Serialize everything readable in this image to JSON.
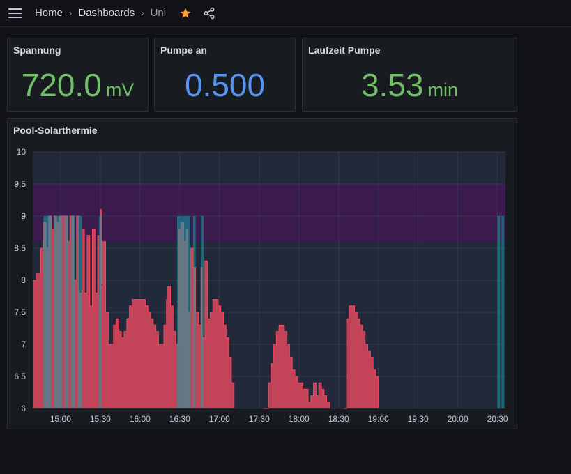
{
  "breadcrumb": {
    "home": "Home",
    "dashboards": "Dashboards",
    "current": "Uni"
  },
  "icons": {
    "menu": "hamburger-menu-icon",
    "star": "star-icon",
    "share": "share-icon"
  },
  "colors": {
    "green": "#73bf69",
    "blue": "#5794f2",
    "star": "#ff9830",
    "series_red": "#f2495c",
    "series_teal": "#16a3a8",
    "threshold_purple": "#3b1a4e"
  },
  "stats": [
    {
      "title": "Spannung",
      "value": "720.0",
      "unit": "mV"
    },
    {
      "title": "Pumpe an",
      "value": "0.500",
      "unit": ""
    },
    {
      "title": "Laufzeit Pumpe",
      "value": "3.53",
      "unit": "min"
    }
  ],
  "chart_data": {
    "type": "area",
    "title": "Pool-Solarthermie",
    "xlabel": "",
    "ylabel": "",
    "ylim": [
      6,
      10
    ],
    "y_ticks": [
      "10",
      "9.5",
      "9",
      "8.5",
      "8",
      "7.5",
      "7",
      "6.5",
      "6"
    ],
    "x_ticks": [
      "15:00",
      "15:30",
      "16:00",
      "16:30",
      "17:00",
      "17:30",
      "18:00",
      "18:30",
      "19:00",
      "19:30",
      "20:00",
      "20:30"
    ],
    "x_range": [
      "14:39",
      "20:36"
    ],
    "threshold_band": [
      8.6,
      9.5
    ],
    "grid": true,
    "legend": "none",
    "series": [
      {
        "points": [
          [
            "14:39",
            8.0
          ],
          [
            "14:42",
            8.1
          ],
          [
            "14:45",
            8.5
          ],
          [
            "14:47",
            8.9
          ],
          [
            "14:49",
            8.5
          ],
          [
            "14:51",
            9.0
          ],
          [
            "14:53",
            8.8
          ],
          [
            "14:55",
            9.0
          ],
          [
            "14:57",
            8.9
          ],
          [
            "14:59",
            9.0
          ],
          [
            "15:01",
            9.0
          ],
          [
            "15:03",
            9.0
          ],
          [
            "15:05",
            8.6
          ],
          [
            "15:07",
            9.0
          ],
          [
            "15:09",
            9.0
          ],
          [
            "15:10",
            8.0
          ],
          [
            "15:12",
            9.0
          ],
          [
            "15:14",
            7.8
          ],
          [
            "15:16",
            8.8
          ],
          [
            "15:18",
            7.8
          ],
          [
            "15:20",
            8.7
          ],
          [
            "15:22",
            7.6
          ],
          [
            "15:24",
            8.8
          ],
          [
            "15:26",
            7.8
          ],
          [
            "15:28",
            8.7
          ],
          [
            "15:29",
            7.7
          ],
          [
            "15:30",
            9.1
          ],
          [
            "15:31",
            7.9
          ],
          [
            "15:32",
            8.6
          ],
          [
            "15:34",
            7.5
          ],
          [
            "15:36",
            7.0
          ],
          [
            "15:38",
            7.0
          ],
          [
            "15:40",
            7.3
          ],
          [
            "15:42",
            7.4
          ],
          [
            "15:44",
            7.2
          ],
          [
            "15:46",
            7.1
          ],
          [
            "15:48",
            7.2
          ],
          [
            "15:50",
            7.4
          ],
          [
            "15:52",
            7.6
          ],
          [
            "15:54",
            7.7
          ],
          [
            "15:56",
            7.7
          ],
          [
            "15:58",
            7.7
          ],
          [
            "16:00",
            7.7
          ],
          [
            "16:02",
            7.7
          ],
          [
            "16:04",
            7.6
          ],
          [
            "16:06",
            7.5
          ],
          [
            "16:08",
            7.4
          ],
          [
            "16:10",
            7.3
          ],
          [
            "16:12",
            7.2
          ],
          [
            "16:14",
            7.0
          ],
          [
            "16:16",
            7.0
          ],
          [
            "16:18",
            7.3
          ],
          [
            "16:20",
            7.7
          ],
          [
            "16:21",
            7.9
          ],
          [
            "16:23",
            7.6
          ],
          [
            "16:25",
            7.2
          ],
          [
            "16:27",
            7.0
          ],
          [
            "16:29",
            8.8
          ],
          [
            "16:31",
            8.9
          ],
          [
            "16:33",
            8.6
          ],
          [
            "16:35",
            8.8
          ],
          [
            "16:36",
            7.5
          ],
          [
            "16:38",
            8.5
          ],
          [
            "16:40",
            8.2
          ],
          [
            "16:42",
            7.5
          ],
          [
            "16:44",
            7.3
          ],
          [
            "16:46",
            8.2
          ],
          [
            "16:47",
            7.1
          ],
          [
            "16:49",
            8.3
          ],
          [
            "16:51",
            7.4
          ],
          [
            "16:53",
            7.5
          ],
          [
            "16:55",
            7.7
          ],
          [
            "16:57",
            7.7
          ],
          [
            "16:59",
            7.6
          ],
          [
            "17:01",
            7.5
          ],
          [
            "17:03",
            7.3
          ],
          [
            "17:05",
            7.1
          ],
          [
            "17:07",
            6.8
          ],
          [
            "17:09",
            6.4
          ],
          [
            "17:11",
            6.0
          ],
          [
            "17:33",
            6.0
          ],
          [
            "17:35",
            6.0
          ],
          [
            "17:37",
            6.4
          ],
          [
            "17:39",
            6.7
          ],
          [
            "17:41",
            7.0
          ],
          [
            "17:43",
            7.2
          ],
          [
            "17:45",
            7.3
          ],
          [
            "17:47",
            7.3
          ],
          [
            "17:49",
            7.2
          ],
          [
            "17:51",
            7.0
          ],
          [
            "17:53",
            6.8
          ],
          [
            "17:55",
            6.6
          ],
          [
            "17:57",
            6.5
          ],
          [
            "17:59",
            6.4
          ],
          [
            "18:01",
            6.4
          ],
          [
            "18:03",
            6.3
          ],
          [
            "18:05",
            6.3
          ],
          [
            "18:07",
            6.1
          ],
          [
            "18:09",
            6.2
          ],
          [
            "18:11",
            6.4
          ],
          [
            "18:13",
            6.2
          ],
          [
            "18:15",
            6.4
          ],
          [
            "18:17",
            6.3
          ],
          [
            "18:19",
            6.2
          ],
          [
            "18:21",
            6.1
          ],
          [
            "18:23",
            6.0
          ],
          [
            "18:34",
            6.0
          ],
          [
            "18:36",
            7.4
          ],
          [
            "18:38",
            7.6
          ],
          [
            "18:40",
            7.6
          ],
          [
            "18:42",
            7.5
          ],
          [
            "18:44",
            7.4
          ],
          [
            "18:46",
            7.3
          ],
          [
            "18:48",
            7.2
          ],
          [
            "18:50",
            7.0
          ],
          [
            "18:52",
            6.9
          ],
          [
            "18:54",
            6.8
          ],
          [
            "18:56",
            6.6
          ],
          [
            "18:58",
            6.5
          ],
          [
            "19:00",
            6.0
          ]
        ]
      },
      {
        "pump_on_intervals": [
          [
            "14:47",
            "14:53"
          ],
          [
            "14:55",
            "15:01"
          ],
          [
            "15:03",
            "15:06"
          ],
          [
            "15:08",
            "15:11"
          ],
          [
            "15:13",
            "15:16"
          ],
          [
            "15:29",
            "15:31"
          ],
          [
            "16:28",
            "16:31"
          ],
          [
            "16:31",
            "16:38"
          ],
          [
            "16:40",
            "16:42"
          ],
          [
            "16:46",
            "16:48"
          ],
          [
            "20:30",
            "20:32"
          ],
          [
            "20:33",
            "20:35"
          ]
        ]
      }
    ]
  }
}
